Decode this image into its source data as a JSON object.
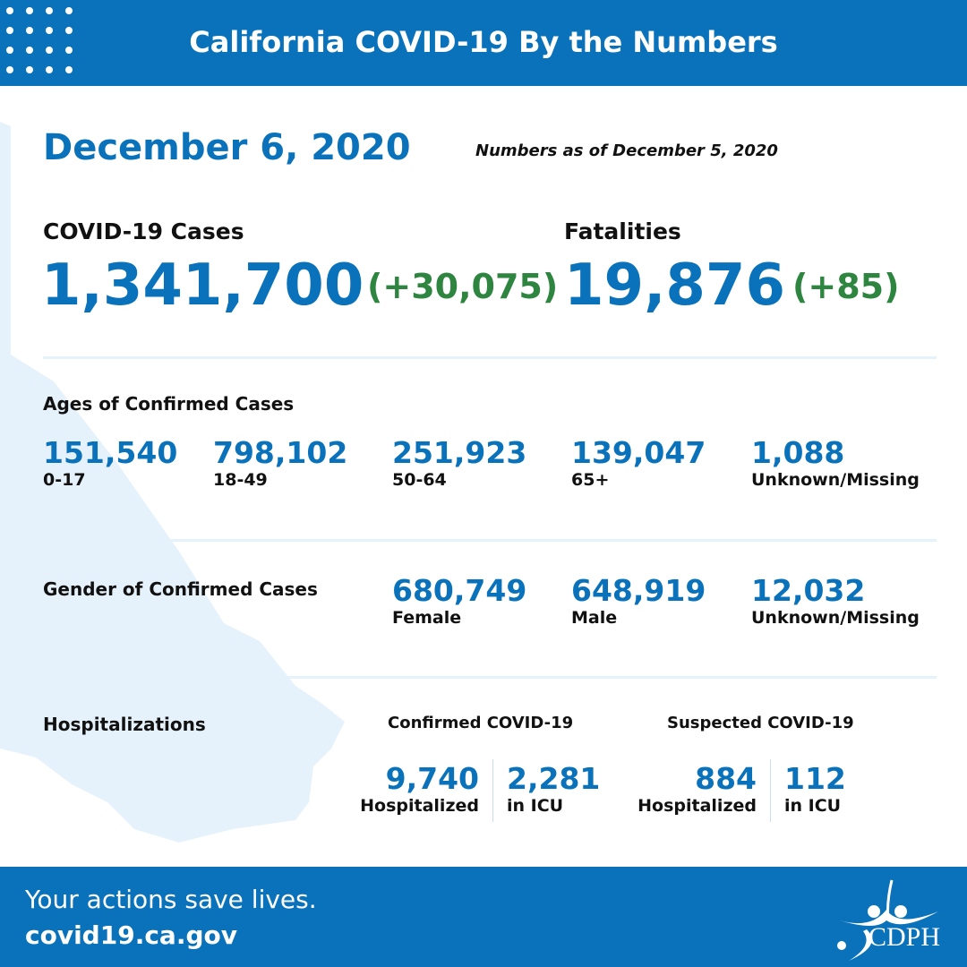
{
  "header": {
    "title": "California COVID-19 By the Numbers",
    "icon": "dot-grid-icon"
  },
  "date": "December 6, 2020",
  "as_of": "Numbers as of December 5, 2020",
  "cases": {
    "label": "COVID-19 Cases",
    "value": "1,341,700",
    "change": "(+30,075)"
  },
  "fatalities": {
    "label": "Fatalities",
    "value": "19,876",
    "change": "(+85)"
  },
  "ages": {
    "label": "Ages of Confirmed Cases",
    "items": [
      {
        "value": "151,540",
        "label": "0-17"
      },
      {
        "value": "798,102",
        "label": "18-49"
      },
      {
        "value": "251,923",
        "label": "50-64"
      },
      {
        "value": "139,047",
        "label": "65+"
      },
      {
        "value": "1,088",
        "label": "Unknown/Missing"
      }
    ]
  },
  "gender": {
    "label": "Gender of Confirmed Cases",
    "items": [
      {
        "value": "680,749",
        "label": "Female"
      },
      {
        "value": "648,919",
        "label": "Male"
      },
      {
        "value": "12,032",
        "label": "Unknown/Missing"
      }
    ]
  },
  "hosp": {
    "label": "Hospitalizations",
    "confirmed": {
      "label": "Confirmed COVID-19",
      "hospitalized": "9,740",
      "hosp_label": "Hospitalized",
      "icu": "2,281",
      "icu_label": "in ICU"
    },
    "suspected": {
      "label": "Suspected COVID-19",
      "hospitalized": "884",
      "hosp_label": "Hospitalized",
      "icu": "112",
      "icu_label": "in ICU"
    }
  },
  "footer": {
    "tagline": "Your actions save lives.",
    "url": "covid19.ca.gov",
    "logo_text": "CDPH"
  },
  "colors": {
    "brand_blue": "#0a72bb",
    "green": "#2e8540",
    "map_blue": "#e6f2fb"
  }
}
